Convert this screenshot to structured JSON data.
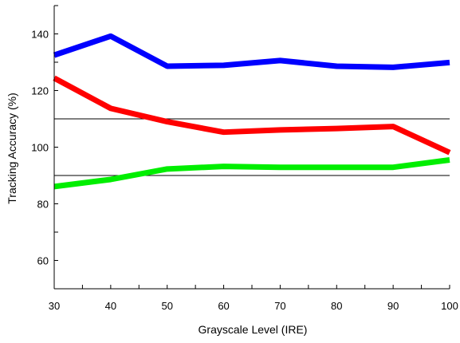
{
  "chart_data": {
    "type": "line",
    "title": "",
    "xlabel": "Grayscale Level (IRE)",
    "ylabel": "Tracking Accuracy (%)",
    "x": [
      30,
      40,
      50,
      60,
      70,
      80,
      90,
      100
    ],
    "xlim": [
      30,
      100
    ],
    "ylim": [
      50,
      150
    ],
    "x_ticks": [
      "30",
      "40",
      "50",
      "60",
      "70",
      "80",
      "90",
      "100"
    ],
    "y_ticks": [
      "60",
      "80",
      "100",
      "120",
      "140"
    ],
    "grid": false,
    "series": [
      {
        "color": "#0000ff",
        "values": [
          132.5,
          139.2,
          128.6,
          128.9,
          130.6,
          128.6,
          128.2,
          129.9
        ]
      },
      {
        "color": "#ff0000",
        "values": [
          124.4,
          113.7,
          109.0,
          105.3,
          106.1,
          106.6,
          107.3,
          98.1
        ]
      },
      {
        "color": "#00ee00",
        "values": [
          86.1,
          88.6,
          92.3,
          93.2,
          92.9,
          92.9,
          92.9,
          95.5
        ]
      }
    ],
    "reference_lines": [
      110,
      90
    ]
  }
}
